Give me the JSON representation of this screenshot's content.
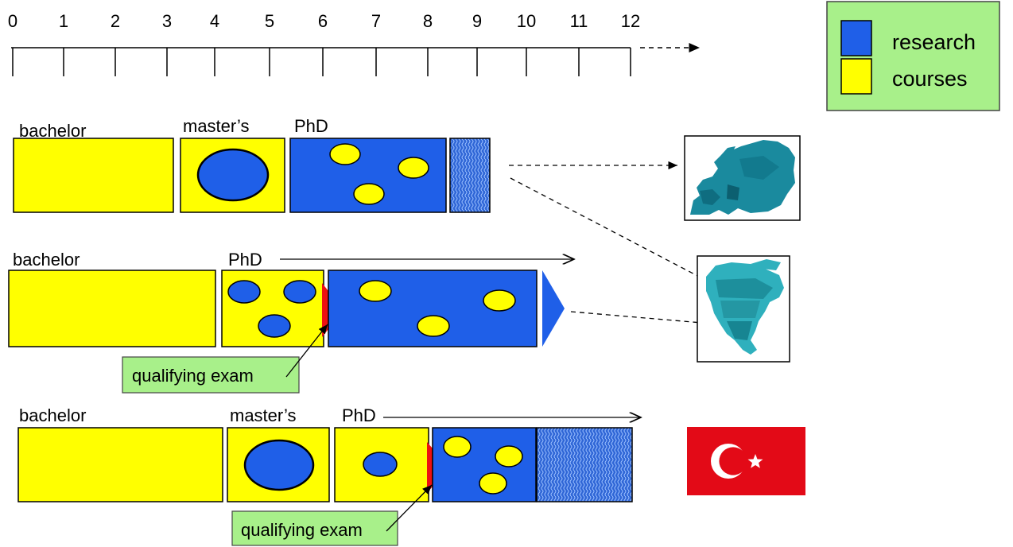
{
  "timeline": {
    "ticks": [
      "0",
      "1",
      "2",
      "3",
      "4",
      "5",
      "6",
      "7",
      "8",
      "9",
      "10",
      "11",
      "12"
    ]
  },
  "legend": {
    "items": [
      {
        "label": "research",
        "color": "#1f5fe8"
      },
      {
        "label": "courses",
        "color": "#ffff00"
      }
    ]
  },
  "colors": {
    "research": "#1f5fe8",
    "courses": "#ffff00",
    "exam": "#ee1111",
    "legend_bg": "#a8f08a",
    "callout_bg": "#a8f08a",
    "flag_red": "#e30a17"
  },
  "rows": [
    {
      "labels": {
        "bachelor": "bachelor",
        "masters": "master’s",
        "phd": "PhD"
      }
    },
    {
      "labels": {
        "bachelor": "bachelor",
        "phd": "PhD",
        "exam": "qualifying exam"
      }
    },
    {
      "labels": {
        "bachelor": "bachelor",
        "masters": "master’s",
        "phd": "PhD",
        "exam": "qualifying exam"
      }
    }
  ],
  "regions": [
    {
      "name": "Europe",
      "icon": "europe-map-icon"
    },
    {
      "name": "North America",
      "icon": "north-america-map-icon"
    },
    {
      "name": "Turkey",
      "icon": "turkey-flag-icon"
    }
  ]
}
